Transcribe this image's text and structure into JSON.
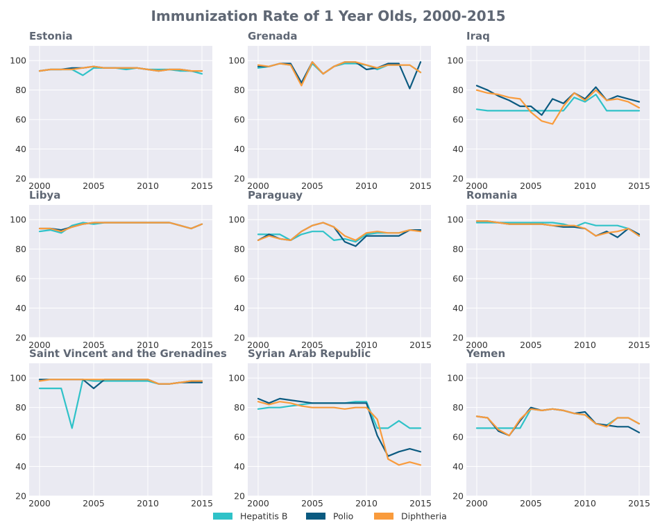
{
  "figure": {
    "title": "Immunization Rate of 1 Year Olds, 2000-2015"
  },
  "colors": {
    "panel_background": "#eaeaf2",
    "gridline": "#ffffff",
    "title_text": "#5f6774"
  },
  "legend": {
    "placement": "bottom-center",
    "entries": [
      {
        "name": "Hepatitis B",
        "color": "#2fc2c8"
      },
      {
        "name": "Polio",
        "color": "#0b5a80"
      },
      {
        "name": "Diphtheria",
        "color": "#f99b3c"
      }
    ]
  },
  "chart_data": [
    {
      "type": "line",
      "title": "Estonia",
      "grid": true,
      "x": [
        2000,
        2001,
        2002,
        2003,
        2004,
        2005,
        2006,
        2007,
        2008,
        2009,
        2010,
        2011,
        2012,
        2013,
        2014,
        2015
      ],
      "xticks": [
        2000,
        2005,
        2010,
        2015
      ],
      "yticks": [
        20,
        40,
        60,
        80,
        100
      ],
      "ylim": [
        20,
        110
      ],
      "series": [
        {
          "name": "Hepatitis B",
          "color": "#2fc2c8",
          "values": [
            93,
            94,
            94,
            94,
            90,
            95,
            95,
            95,
            94,
            95,
            94,
            94,
            94,
            93,
            93,
            91
          ]
        },
        {
          "name": "Polio",
          "color": "#0b5a80",
          "values": [
            93,
            94,
            94,
            95,
            95,
            96,
            95,
            95,
            95,
            95,
            94,
            93,
            94,
            94,
            93,
            93
          ]
        },
        {
          "name": "Diphtheria",
          "color": "#f99b3c",
          "values": [
            93,
            94,
            94,
            94,
            95,
            96,
            95,
            95,
            95,
            95,
            94,
            93,
            94,
            94,
            93,
            93
          ]
        }
      ]
    },
    {
      "type": "line",
      "title": "Grenada",
      "grid": true,
      "x": [
        2000,
        2001,
        2002,
        2003,
        2004,
        2005,
        2006,
        2007,
        2008,
        2009,
        2010,
        2011,
        2012,
        2013,
        2014,
        2015
      ],
      "xticks": [
        2000,
        2005,
        2010,
        2015
      ],
      "yticks": [
        20,
        40,
        60,
        80,
        100
      ],
      "ylim": [
        20,
        110
      ],
      "series": [
        {
          "name": "Hepatitis B",
          "color": "#2fc2c8",
          "values": [
            95,
            96,
            98,
            97,
            84,
            98,
            91,
            96,
            98,
            98,
            97,
            94,
            97,
            97,
            97,
            92
          ]
        },
        {
          "name": "Polio",
          "color": "#0b5a80",
          "values": [
            96,
            96,
            98,
            98,
            85,
            99,
            91,
            96,
            99,
            99,
            94,
            95,
            98,
            98,
            81,
            99
          ]
        },
        {
          "name": "Diphtheria",
          "color": "#f99b3c",
          "values": [
            97,
            96,
            98,
            97,
            83,
            99,
            91,
            96,
            99,
            99,
            97,
            95,
            97,
            97,
            97,
            92
          ]
        }
      ]
    },
    {
      "type": "line",
      "title": "Iraq",
      "grid": true,
      "x": [
        2000,
        2001,
        2002,
        2003,
        2004,
        2005,
        2006,
        2007,
        2008,
        2009,
        2010,
        2011,
        2012,
        2013,
        2014,
        2015
      ],
      "xticks": [
        2000,
        2005,
        2010,
        2015
      ],
      "yticks": [
        20,
        40,
        60,
        80,
        100
      ],
      "ylim": [
        20,
        110
      ],
      "series": [
        {
          "name": "Hepatitis B",
          "color": "#2fc2c8",
          "values": [
            67,
            66,
            66,
            66,
            66,
            66,
            66,
            66,
            66,
            75,
            72,
            77,
            66,
            66,
            66,
            66
          ]
        },
        {
          "name": "Polio",
          "color": "#0b5a80",
          "values": [
            83,
            80,
            76,
            73,
            69,
            69,
            63,
            74,
            71,
            78,
            74,
            82,
            73,
            76,
            74,
            72
          ]
        },
        {
          "name": "Diphtheria",
          "color": "#f99b3c",
          "values": [
            80,
            78,
            77,
            75,
            74,
            65,
            59,
            57,
            69,
            78,
            73,
            80,
            73,
            74,
            72,
            68
          ]
        }
      ]
    },
    {
      "type": "line",
      "title": "Libya",
      "grid": true,
      "x": [
        2000,
        2001,
        2002,
        2003,
        2004,
        2005,
        2006,
        2007,
        2008,
        2009,
        2010,
        2011,
        2012,
        2013,
        2014,
        2015
      ],
      "xticks": [
        2000,
        2005,
        2010,
        2015
      ],
      "yticks": [
        20,
        40,
        60,
        80,
        100
      ],
      "ylim": [
        20,
        110
      ],
      "series": [
        {
          "name": "Hepatitis B",
          "color": "#2fc2c8",
          "values": [
            92,
            93,
            91,
            96,
            98,
            97,
            98,
            98,
            98,
            98,
            98,
            98,
            98,
            96,
            94,
            97
          ]
        },
        {
          "name": "Polio",
          "color": "#0b5a80",
          "values": [
            94,
            94,
            93,
            95,
            97,
            98,
            98,
            98,
            98,
            98,
            98,
            98,
            98,
            96,
            94,
            97
          ]
        },
        {
          "name": "Diphtheria",
          "color": "#f99b3c",
          "values": [
            94,
            94,
            92,
            95,
            97,
            98,
            98,
            98,
            98,
            98,
            98,
            98,
            98,
            96,
            94,
            97
          ]
        }
      ]
    },
    {
      "type": "line",
      "title": "Paraguay",
      "grid": true,
      "x": [
        2000,
        2001,
        2002,
        2003,
        2004,
        2005,
        2006,
        2007,
        2008,
        2009,
        2010,
        2011,
        2012,
        2013,
        2014,
        2015
      ],
      "xticks": [
        2000,
        2005,
        2010,
        2015
      ],
      "yticks": [
        20,
        40,
        60,
        80,
        100
      ],
      "ylim": [
        20,
        110
      ],
      "series": [
        {
          "name": "Hepatitis B",
          "color": "#2fc2c8",
          "values": [
            90,
            90,
            90,
            86,
            90,
            92,
            92,
            86,
            87,
            85,
            90,
            91,
            91,
            91,
            93,
            93
          ]
        },
        {
          "name": "Polio",
          "color": "#0b5a80",
          "values": [
            86,
            90,
            87,
            86,
            92,
            96,
            98,
            95,
            85,
            82,
            89,
            89,
            89,
            89,
            93,
            93
          ]
        },
        {
          "name": "Diphtheria",
          "color": "#f99b3c",
          "values": [
            86,
            89,
            87,
            86,
            92,
            96,
            98,
            95,
            89,
            86,
            91,
            92,
            91,
            91,
            93,
            92
          ]
        }
      ]
    },
    {
      "type": "line",
      "title": "Romania",
      "grid": true,
      "x": [
        2000,
        2001,
        2002,
        2003,
        2004,
        2005,
        2006,
        2007,
        2008,
        2009,
        2010,
        2011,
        2012,
        2013,
        2014,
        2015
      ],
      "xticks": [
        2000,
        2005,
        2010,
        2015
      ],
      "yticks": [
        20,
        40,
        60,
        80,
        100
      ],
      "ylim": [
        20,
        110
      ],
      "series": [
        {
          "name": "Hepatitis B",
          "color": "#2fc2c8",
          "values": [
            98,
            98,
            98,
            98,
            98,
            98,
            98,
            98,
            97,
            95,
            98,
            96,
            96,
            96,
            94,
            89
          ]
        },
        {
          "name": "Polio",
          "color": "#0b5a80",
          "values": [
            99,
            99,
            98,
            97,
            97,
            97,
            97,
            96,
            95,
            95,
            94,
            89,
            92,
            88,
            94,
            90
          ]
        },
        {
          "name": "Diphtheria",
          "color": "#f99b3c",
          "values": [
            99,
            99,
            98,
            97,
            97,
            97,
            97,
            96,
            96,
            96,
            94,
            89,
            91,
            92,
            94,
            89
          ]
        }
      ]
    },
    {
      "type": "line",
      "title": "Saint Vincent and the Grenadines",
      "grid": true,
      "x": [
        2000,
        2001,
        2002,
        2003,
        2004,
        2005,
        2006,
        2007,
        2008,
        2009,
        2010,
        2011,
        2012,
        2013,
        2014,
        2015
      ],
      "xticks": [
        2000,
        2005,
        2010,
        2015
      ],
      "yticks": [
        20,
        40,
        60,
        80,
        100
      ],
      "ylim": [
        20,
        110
      ],
      "series": [
        {
          "name": "Hepatitis B",
          "color": "#2fc2c8",
          "values": [
            93,
            93,
            93,
            66,
            99,
            98,
            98,
            98,
            98,
            98,
            98,
            96,
            96,
            97,
            98,
            98
          ]
        },
        {
          "name": "Polio",
          "color": "#0b5a80",
          "values": [
            99,
            99,
            99,
            99,
            99,
            93,
            99,
            99,
            99,
            99,
            99,
            96,
            96,
            97,
            97,
            97
          ]
        },
        {
          "name": "Diphtheria",
          "color": "#f99b3c",
          "values": [
            98,
            99,
            99,
            99,
            99,
            99,
            99,
            99,
            99,
            99,
            99,
            96,
            96,
            97,
            98,
            98
          ]
        }
      ]
    },
    {
      "type": "line",
      "title": "Syrian Arab Republic",
      "grid": true,
      "x": [
        2000,
        2001,
        2002,
        2003,
        2004,
        2005,
        2006,
        2007,
        2008,
        2009,
        2010,
        2011,
        2012,
        2013,
        2014,
        2015
      ],
      "xticks": [
        2000,
        2005,
        2010,
        2015
      ],
      "yticks": [
        20,
        40,
        60,
        80,
        100
      ],
      "ylim": [
        20,
        110
      ],
      "series": [
        {
          "name": "Hepatitis B",
          "color": "#2fc2c8",
          "values": [
            79,
            80,
            80,
            81,
            82,
            83,
            83,
            83,
            83,
            84,
            84,
            66,
            66,
            71,
            66,
            66
          ]
        },
        {
          "name": "Polio",
          "color": "#0b5a80",
          "values": [
            86,
            83,
            86,
            85,
            84,
            83,
            83,
            83,
            83,
            83,
            83,
            61,
            47,
            50,
            52,
            50
          ]
        },
        {
          "name": "Diphtheria",
          "color": "#f99b3c",
          "values": [
            84,
            82,
            84,
            83,
            81,
            80,
            80,
            80,
            79,
            80,
            80,
            72,
            45,
            41,
            43,
            41
          ]
        }
      ]
    },
    {
      "type": "line",
      "title": "Yemen",
      "grid": true,
      "x": [
        2000,
        2001,
        2002,
        2003,
        2004,
        2005,
        2006,
        2007,
        2008,
        2009,
        2010,
        2011,
        2012,
        2013,
        2014,
        2015
      ],
      "xticks": [
        2000,
        2005,
        2010,
        2015
      ],
      "yticks": [
        20,
        40,
        60,
        80,
        100
      ],
      "ylim": [
        20,
        110
      ],
      "series": [
        {
          "name": "Hepatitis B",
          "color": "#2fc2c8",
          "values": [
            66,
            66,
            66,
            66,
            66,
            79,
            78,
            79,
            78,
            76,
            75,
            69,
            68,
            73,
            73,
            69
          ]
        },
        {
          "name": "Polio",
          "color": "#0b5a80",
          "values": [
            74,
            73,
            64,
            61,
            71,
            80,
            78,
            79,
            78,
            76,
            77,
            69,
            68,
            67,
            67,
            63
          ]
        },
        {
          "name": "Diphtheria",
          "color": "#f99b3c",
          "values": [
            74,
            73,
            65,
            61,
            72,
            79,
            78,
            79,
            78,
            76,
            75,
            69,
            67,
            73,
            73,
            69
          ]
        }
      ]
    }
  ]
}
